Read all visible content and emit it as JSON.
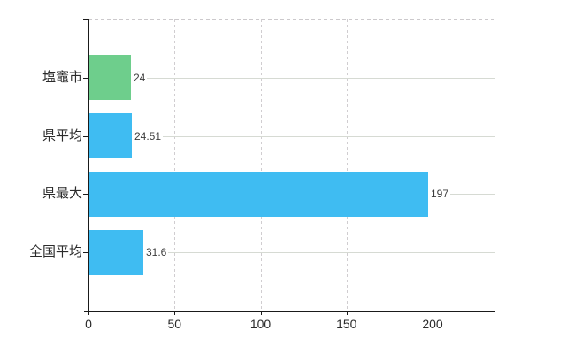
{
  "chart_data": {
    "type": "bar",
    "orientation": "horizontal",
    "title": "",
    "categories": [
      "塩竈市",
      "県平均",
      "県最大",
      "全国平均"
    ],
    "values": [
      24,
      24.51,
      197,
      31.6
    ],
    "value_labels": [
      "24",
      "24.51",
      "197",
      "31.6"
    ],
    "bar_colors": [
      "#6ece8c",
      "#3fbcf2",
      "#3fbcf2",
      "#3fbcf2"
    ],
    "x_ticks": [
      0,
      50,
      100,
      150,
      200
    ],
    "x_tick_labels": [
      "0",
      "50",
      "100",
      "150",
      "200"
    ],
    "xlim": [
      0,
      236.5
    ],
    "ylabel": "",
    "xlabel": "",
    "legend": "none",
    "grid": {
      "vertical_dashed": true,
      "horizontal_category_lines": true,
      "top_border_dashed": true
    },
    "colors": {
      "axis": "#1a1a1a",
      "grid_vertical": "#d0cdd0",
      "grid_horizontal": "#d6dad3",
      "tick_text": "#2b2b2b",
      "value_text": "#3c3c3c",
      "background": "#ffffff"
    }
  }
}
